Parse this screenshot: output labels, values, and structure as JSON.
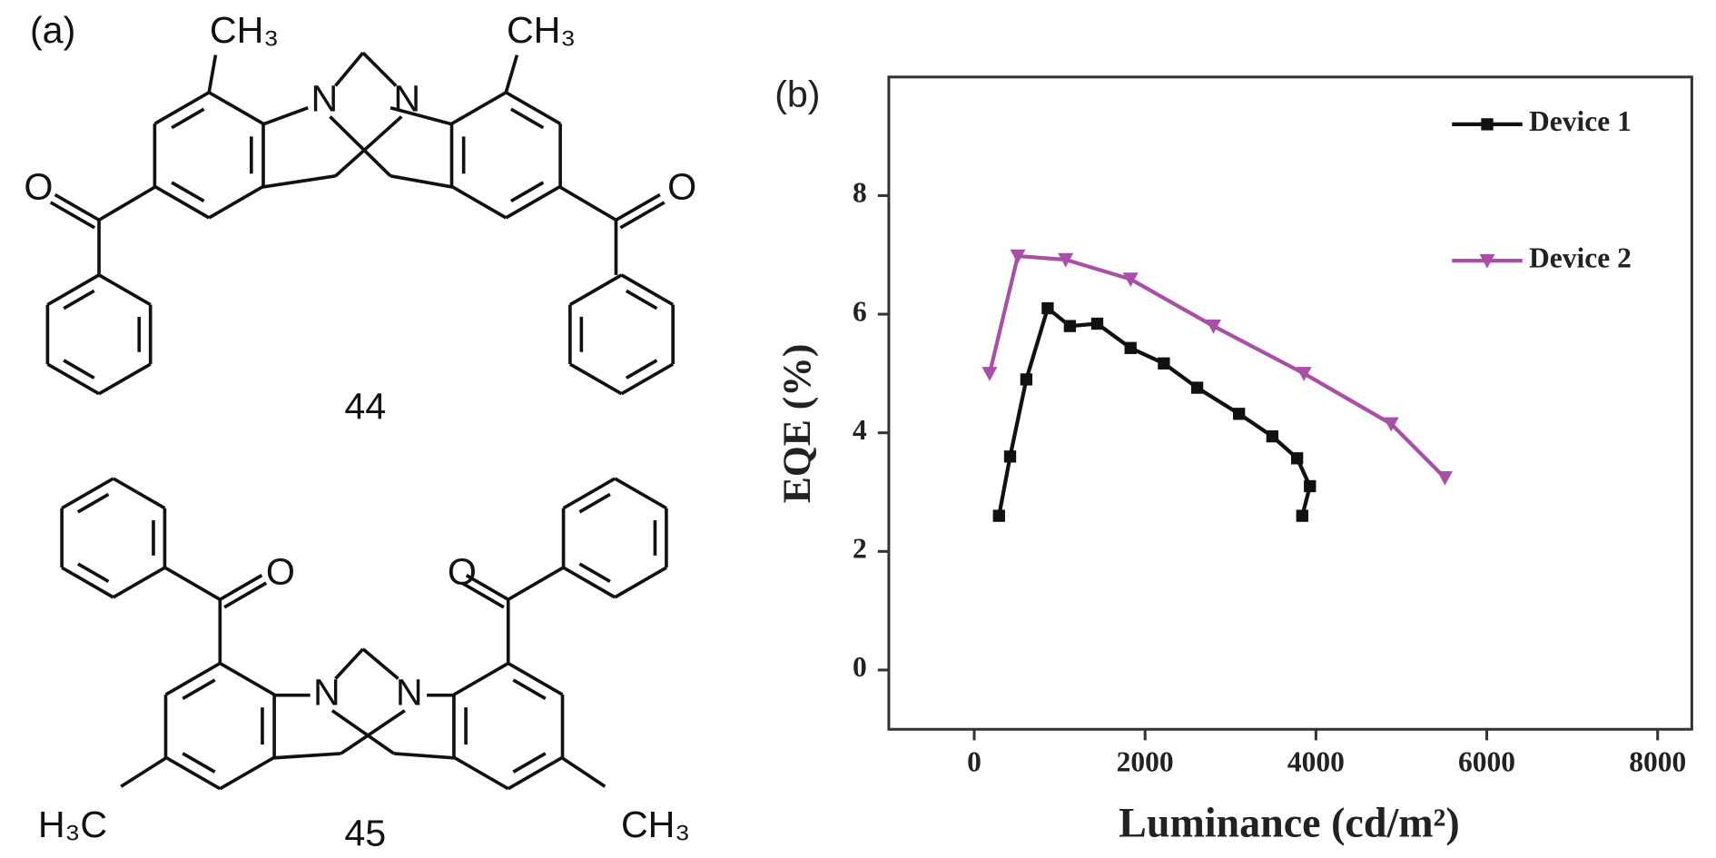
{
  "panel_a": {
    "label": "(a)",
    "compounds": [
      {
        "number": "44",
        "atoms": [
          "CH₃",
          "CH₃",
          "N",
          "N",
          "O",
          "O"
        ]
      },
      {
        "number": "45",
        "atoms": [
          "O",
          "O",
          "N",
          "N",
          "H₃C",
          "CH₃"
        ]
      }
    ]
  },
  "chart_data": {
    "type": "line",
    "panel_label": "(b)",
    "x_label": "Luminance (cd/m²)",
    "y_label": "EQE (%)",
    "xlim": [
      -1000,
      8400
    ],
    "xticks": [
      0,
      2000,
      4000,
      6000,
      8000
    ],
    "ylim": [
      -1,
      10
    ],
    "yticks": [
      0,
      2,
      4,
      6,
      8
    ],
    "legend": "upper right",
    "grid": false,
    "series": [
      {
        "name": "Device 1",
        "color": "#111111",
        "marker": "square",
        "x": [
          290,
          420,
          610,
          860,
          1120,
          1440,
          1830,
          2220,
          2610,
          3100,
          3490,
          3780,
          3930,
          3840
        ],
        "values": [
          2.6,
          3.6,
          4.9,
          6.1,
          5.8,
          5.84,
          5.43,
          5.17,
          4.76,
          4.32,
          3.94,
          3.57,
          3.1,
          2.6
        ]
      },
      {
        "name": "Device 2",
        "color": "#a94fa8",
        "marker": "triangle-down",
        "x": [
          180,
          510,
          1070,
          1830,
          2800,
          3860,
          4880,
          5510
        ],
        "values": [
          5.0,
          6.98,
          6.92,
          6.59,
          5.8,
          5.0,
          4.15,
          3.24
        ]
      }
    ]
  }
}
